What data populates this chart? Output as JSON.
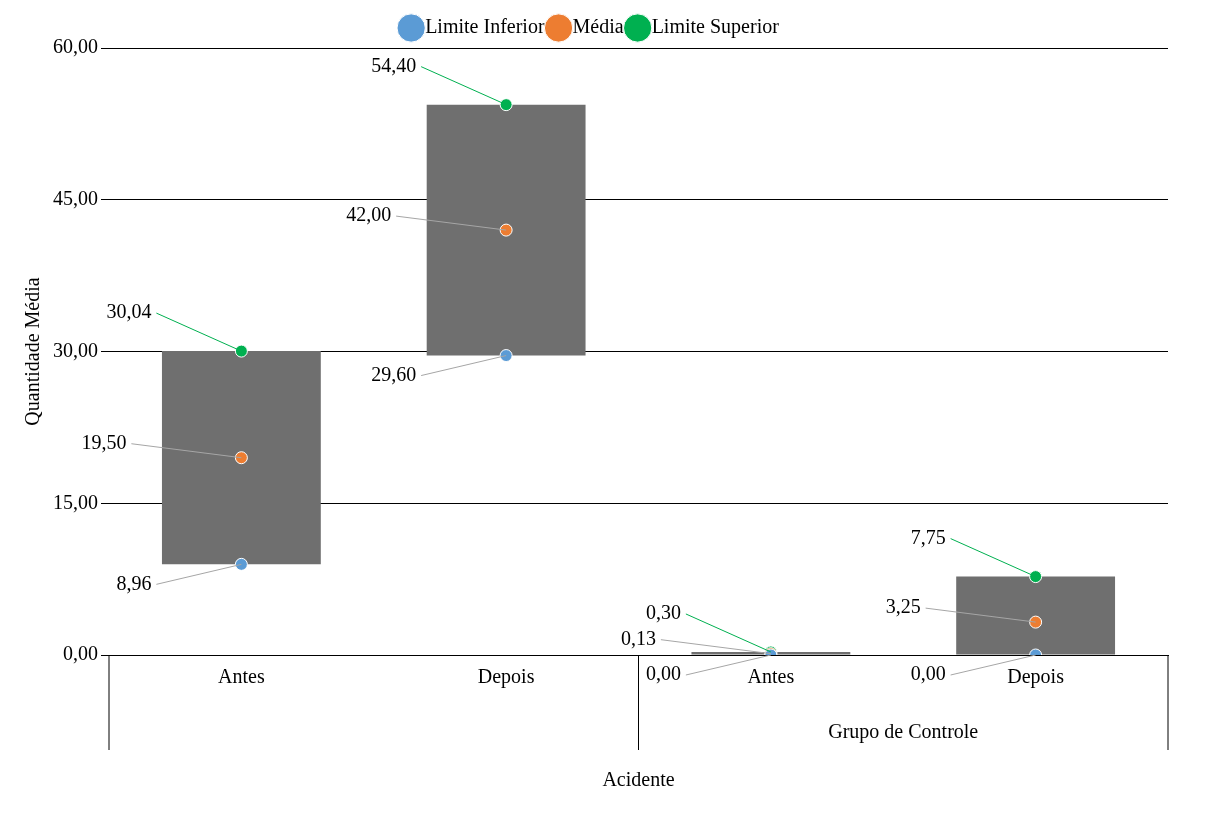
{
  "chart_data": {
    "type": "bar",
    "ylabel": "Quantidade Média",
    "xlabel": "Acidente",
    "categories": [
      "Antes",
      "Depois",
      "Antes",
      "Depois"
    ],
    "annotations": [
      "Grupo de Controle"
    ],
    "ylim": [
      0,
      60
    ],
    "yticks": [
      {
        "value": 0,
        "label": "0,00"
      },
      {
        "value": 15,
        "label": "15,00"
      },
      {
        "value": 30,
        "label": "30,00"
      },
      {
        "value": 45,
        "label": "45,00"
      },
      {
        "value": 60,
        "label": "60,00"
      }
    ],
    "grid": "y",
    "legend": "top",
    "marker": "circle",
    "series": [
      {
        "color": "#6f6f6f",
        "base": [
          8.96,
          29.6,
          0,
          0
        ],
        "values": [
          21.08,
          24.8,
          0.3,
          7.75
        ]
      },
      {
        "type": "scatter",
        "name": "Limite Inferior",
        "color": "#5b9bd5",
        "values": [
          8.96,
          29.6,
          0,
          0
        ],
        "value_labels": [
          "8,96",
          "29,60",
          "0,00",
          "0,00"
        ]
      },
      {
        "type": "scatter",
        "name": "Média",
        "color": "#ed7d31",
        "values": [
          19.5,
          42,
          0.13,
          3.25
        ],
        "value_labels": [
          "19,50",
          "42,00",
          "0,13",
          "3,25"
        ]
      },
      {
        "type": "scatter",
        "name": "Limite Superior",
        "color": "#00b050",
        "values": [
          30.04,
          54.4,
          0.3,
          7.75
        ],
        "value_labels": [
          "30,04",
          "54,40",
          "0,30",
          "7,75"
        ]
      }
    ]
  }
}
